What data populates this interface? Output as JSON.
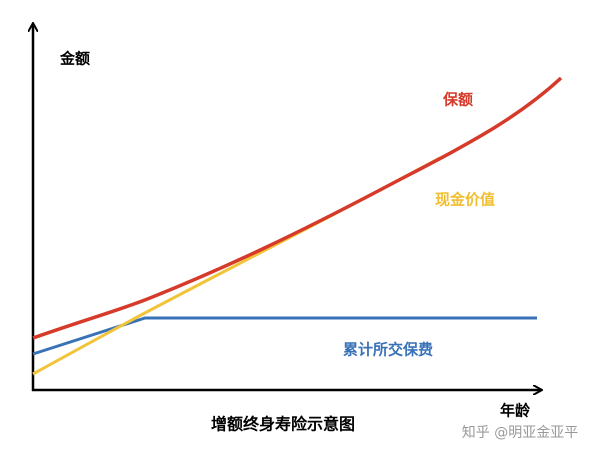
{
  "axes": {
    "y_label": "金额",
    "x_label": "年龄"
  },
  "curves": {
    "sum_assured": "保额",
    "cash_value": "现金价值",
    "premiums_paid": "累计所交保费"
  },
  "caption": "增额终身寿险示意图",
  "watermark": "知乎 @明亚金亚平"
}
